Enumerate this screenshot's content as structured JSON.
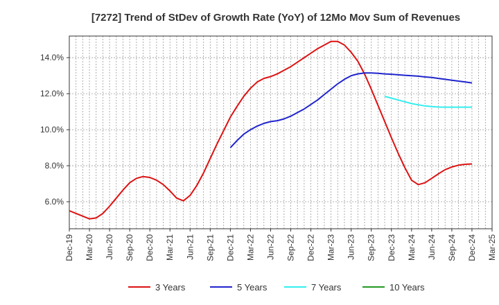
{
  "chart_data": {
    "type": "line",
    "title": "[7272]  Trend of StDev of Growth Rate (YoY) of 12Mo Mov Sum of Revenues",
    "xlabel": "",
    "ylabel": "",
    "x_ticks": [
      "Dec-19",
      "Mar-20",
      "Jun-20",
      "Sep-20",
      "Dec-20",
      "Mar-21",
      "Jun-21",
      "Sep-21",
      "Dec-21",
      "Mar-22",
      "Jun-22",
      "Sep-22",
      "Dec-22",
      "Mar-23",
      "Jun-23",
      "Sep-23",
      "Dec-23",
      "Mar-24",
      "Jun-24",
      "Sep-24",
      "Dec-24",
      "Mar-25"
    ],
    "y_ticks": [
      "6.0%",
      "8.0%",
      "10.0%",
      "12.0%",
      "14.0%"
    ],
    "y_tick_values": [
      6,
      8,
      10,
      12,
      14
    ],
    "ylim": [
      4.5,
      15.2
    ],
    "x_range_months": [
      0,
      63
    ],
    "grid": true,
    "series": [
      {
        "name": "3 Years",
        "color": "#dd1111",
        "points": [
          [
            0,
            5.5
          ],
          [
            1,
            5.35
          ],
          [
            2,
            5.2
          ],
          [
            3,
            5.05
          ],
          [
            4,
            5.1
          ],
          [
            5,
            5.35
          ],
          [
            6,
            5.75
          ],
          [
            7,
            6.2
          ],
          [
            8,
            6.65
          ],
          [
            9,
            7.05
          ],
          [
            10,
            7.3
          ],
          [
            11,
            7.4
          ],
          [
            12,
            7.35
          ],
          [
            13,
            7.2
          ],
          [
            14,
            6.95
          ],
          [
            15,
            6.6
          ],
          [
            16,
            6.2
          ],
          [
            17,
            6.05
          ],
          [
            18,
            6.35
          ],
          [
            19,
            6.9
          ],
          [
            20,
            7.6
          ],
          [
            21,
            8.4
          ],
          [
            22,
            9.2
          ],
          [
            23,
            9.95
          ],
          [
            24,
            10.7
          ],
          [
            25,
            11.3
          ],
          [
            26,
            11.85
          ],
          [
            27,
            12.3
          ],
          [
            28,
            12.65
          ],
          [
            29,
            12.85
          ],
          [
            30,
            12.95
          ],
          [
            31,
            13.1
          ],
          [
            32,
            13.3
          ],
          [
            33,
            13.5
          ],
          [
            34,
            13.75
          ],
          [
            35,
            14.0
          ],
          [
            36,
            14.25
          ],
          [
            37,
            14.5
          ],
          [
            38,
            14.7
          ],
          [
            39,
            14.9
          ],
          [
            40,
            14.9
          ],
          [
            41,
            14.7
          ],
          [
            42,
            14.3
          ],
          [
            43,
            13.8
          ],
          [
            44,
            13.1
          ],
          [
            45,
            12.25
          ],
          [
            46,
            11.35
          ],
          [
            47,
            10.45
          ],
          [
            48,
            9.55
          ],
          [
            49,
            8.7
          ],
          [
            50,
            7.9
          ],
          [
            51,
            7.2
          ],
          [
            52,
            6.95
          ],
          [
            53,
            7.05
          ],
          [
            54,
            7.3
          ],
          [
            55,
            7.55
          ],
          [
            56,
            7.78
          ],
          [
            57,
            7.93
          ],
          [
            58,
            8.03
          ],
          [
            59,
            8.08
          ],
          [
            60,
            8.1
          ]
        ]
      },
      {
        "name": "5 Years",
        "color": "#1f24cc",
        "points": [
          [
            24,
            9.0
          ],
          [
            25,
            9.4
          ],
          [
            26,
            9.75
          ],
          [
            27,
            10.0
          ],
          [
            28,
            10.2
          ],
          [
            29,
            10.35
          ],
          [
            30,
            10.45
          ],
          [
            31,
            10.5
          ],
          [
            32,
            10.6
          ],
          [
            33,
            10.75
          ],
          [
            34,
            10.95
          ],
          [
            35,
            11.15
          ],
          [
            36,
            11.4
          ],
          [
            37,
            11.65
          ],
          [
            38,
            11.95
          ],
          [
            39,
            12.25
          ],
          [
            40,
            12.55
          ],
          [
            41,
            12.8
          ],
          [
            42,
            13.0
          ],
          [
            43,
            13.1
          ],
          [
            44,
            13.15
          ],
          [
            45,
            13.15
          ],
          [
            46,
            13.13
          ],
          [
            47,
            13.1
          ],
          [
            48,
            13.08
          ],
          [
            49,
            13.05
          ],
          [
            50,
            13.02
          ],
          [
            51,
            13.0
          ],
          [
            52,
            12.97
          ],
          [
            53,
            12.93
          ],
          [
            54,
            12.9
          ],
          [
            55,
            12.85
          ],
          [
            56,
            12.8
          ],
          [
            57,
            12.75
          ],
          [
            58,
            12.7
          ],
          [
            59,
            12.65
          ],
          [
            60,
            12.6
          ]
        ]
      },
      {
        "name": "7 Years",
        "color": "#33eeee",
        "points": [
          [
            47,
            11.85
          ],
          [
            48,
            11.75
          ],
          [
            49,
            11.65
          ],
          [
            50,
            11.55
          ],
          [
            51,
            11.45
          ],
          [
            52,
            11.38
          ],
          [
            53,
            11.32
          ],
          [
            54,
            11.28
          ],
          [
            55,
            11.26
          ],
          [
            56,
            11.25
          ],
          [
            57,
            11.25
          ],
          [
            58,
            11.25
          ],
          [
            59,
            11.25
          ],
          [
            60,
            11.25
          ]
        ]
      },
      {
        "name": "10 Years",
        "color": "#229922",
        "points": []
      }
    ],
    "legend": [
      "3 Years",
      "5 Years",
      "7 Years",
      "10 Years"
    ],
    "legend_position": "bottom"
  }
}
